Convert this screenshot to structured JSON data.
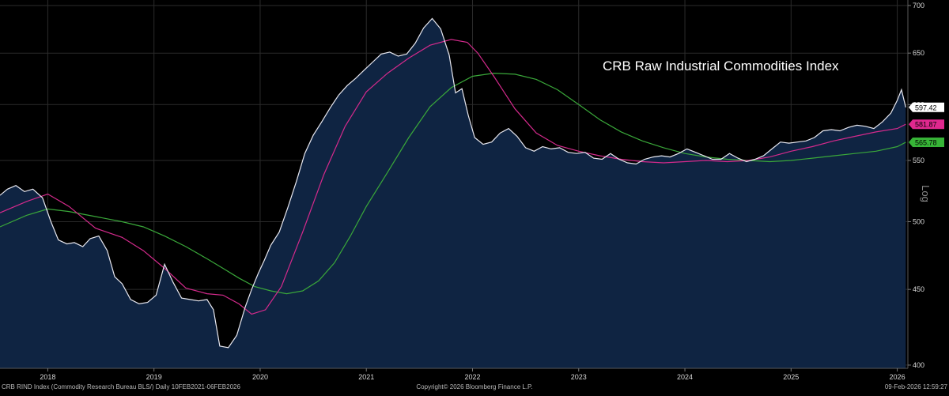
{
  "chart_data": {
    "type": "line",
    "title": "CRB Raw Industrial Commodities Index",
    "axis_label": "Log",
    "log_scale": true,
    "grid": true,
    "xlim": [
      2017.55,
      2026.1
    ],
    "ylim": [
      398,
      706
    ],
    "y_ticks": [
      {
        "value": 400,
        "label": "400"
      },
      {
        "value": 450,
        "label": "450"
      },
      {
        "value": 500,
        "label": "500"
      },
      {
        "value": 550,
        "label": "550"
      },
      {
        "value": 600,
        "label": "600"
      },
      {
        "value": 650,
        "label": "650"
      },
      {
        "value": 700,
        "label": "700"
      }
    ],
    "x_ticks": [
      {
        "value": 2018.0,
        "label": "2018"
      },
      {
        "value": 2019.0,
        "label": "2019"
      },
      {
        "value": 2020.0,
        "label": "2020"
      },
      {
        "value": 2021.0,
        "label": "2021"
      },
      {
        "value": 2022.0,
        "label": "2022"
      },
      {
        "value": 2023.0,
        "label": "2023"
      },
      {
        "value": 2024.0,
        "label": "2024"
      },
      {
        "value": 2025.0,
        "label": "2025"
      },
      {
        "value": 2026.0,
        "label": "2026"
      }
    ],
    "colors": {
      "price": "#e8e8f0",
      "area_fill": "#0f2442",
      "ma_short": "#d42a8c",
      "ma_long": "#3aa83a",
      "grid": "#2b2b2b"
    },
    "series": [
      {
        "key": "price",
        "x": [
          2017.55,
          2017.62,
          2017.7,
          2017.78,
          2017.86,
          2017.95,
          2018.03,
          2018.1,
          2018.18,
          2018.25,
          2018.33,
          2018.4,
          2018.48,
          2018.56,
          2018.63,
          2018.7,
          2018.78,
          2018.86,
          2018.94,
          2019.02,
          2019.1,
          2019.18,
          2019.26,
          2019.34,
          2019.42,
          2019.5,
          2019.56,
          2019.62,
          2019.7,
          2019.78,
          2019.86,
          2019.92,
          2019.98,
          2020.04,
          2020.1,
          2020.18,
          2020.26,
          2020.34,
          2020.42,
          2020.5,
          2020.58,
          2020.66,
          2020.74,
          2020.82,
          2020.9,
          2020.98,
          2021.06,
          2021.14,
          2021.22,
          2021.3,
          2021.38,
          2021.46,
          2021.54,
          2021.62,
          2021.7,
          2021.78,
          2021.84,
          2021.9,
          2021.96,
          2022.02,
          2022.1,
          2022.18,
          2022.26,
          2022.34,
          2022.42,
          2022.5,
          2022.58,
          2022.66,
          2022.74,
          2022.82,
          2022.9,
          2022.98,
          2023.06,
          2023.14,
          2023.22,
          2023.3,
          2023.38,
          2023.46,
          2023.54,
          2023.62,
          2023.7,
          2023.78,
          2023.86,
          2023.94,
          2024.02,
          2024.1,
          2024.18,
          2024.26,
          2024.34,
          2024.42,
          2024.5,
          2024.58,
          2024.66,
          2024.74,
          2024.82,
          2024.9,
          2024.98,
          2025.06,
          2025.14,
          2025.22,
          2025.3,
          2025.38,
          2025.46,
          2025.54,
          2025.62,
          2025.7,
          2025.78,
          2025.86,
          2025.94,
          2026.0,
          2026.04,
          2026.08
        ],
        "values": [
          521,
          526,
          529,
          524,
          526,
          519,
          500,
          486,
          483,
          484,
          481,
          487,
          489,
          478,
          459,
          454,
          443,
          440,
          441,
          446,
          468,
          455,
          444,
          443,
          442,
          443,
          436,
          412,
          411,
          419,
          438,
          450,
          461,
          471,
          482,
          492,
          511,
          532,
          556,
          572,
          584,
          597,
          609,
          618,
          625,
          633,
          641,
          649,
          651,
          647,
          649,
          660,
          676,
          686,
          675,
          648,
          611,
          615,
          590,
          570,
          564,
          566,
          574,
          578,
          571,
          561,
          558,
          562,
          560,
          561,
          557,
          556,
          557,
          552,
          551,
          556,
          551,
          548,
          547,
          551,
          553,
          554,
          553,
          556,
          560,
          557,
          554,
          551,
          551,
          556,
          552,
          549,
          551,
          554,
          560,
          566,
          565,
          566,
          567,
          570,
          576,
          577,
          576,
          579,
          581,
          580,
          578,
          584,
          592,
          604,
          614,
          597.42
        ]
      },
      {
        "key": "ma_short",
        "x": [
          2017.55,
          2017.8,
          2018.0,
          2018.2,
          2018.45,
          2018.7,
          2018.9,
          2019.1,
          2019.3,
          2019.5,
          2019.65,
          2019.8,
          2019.92,
          2020.05,
          2020.2,
          2020.4,
          2020.6,
          2020.8,
          2021.0,
          2021.2,
          2021.4,
          2021.6,
          2021.8,
          2021.95,
          2022.05,
          2022.2,
          2022.4,
          2022.6,
          2022.8,
          2023.0,
          2023.2,
          2023.4,
          2023.6,
          2023.8,
          2024.0,
          2024.2,
          2024.4,
          2024.6,
          2024.8,
          2025.0,
          2025.2,
          2025.4,
          2025.6,
          2025.8,
          2026.0,
          2026.08
        ],
        "values": [
          507,
          516,
          522,
          512,
          495,
          488,
          478,
          465,
          451,
          447,
          446,
          440,
          433,
          436,
          452,
          492,
          538,
          580,
          612,
          630,
          645,
          658,
          664,
          661,
          650,
          627,
          596,
          574,
          563,
          558,
          554,
          551,
          549,
          548,
          549,
          550,
          549,
          550,
          553,
          558,
          562,
          567,
          571,
          575,
          578,
          581.87
        ]
      },
      {
        "key": "ma_long",
        "x": [
          2017.55,
          2017.8,
          2018.0,
          2018.2,
          2018.45,
          2018.7,
          2018.9,
          2019.1,
          2019.3,
          2019.5,
          2019.65,
          2019.8,
          2019.95,
          2020.1,
          2020.25,
          2020.4,
          2020.55,
          2020.7,
          2020.85,
          2021.0,
          2021.2,
          2021.4,
          2021.6,
          2021.8,
          2022.0,
          2022.2,
          2022.4,
          2022.6,
          2022.8,
          2023.0,
          2023.2,
          2023.4,
          2023.6,
          2023.8,
          2024.0,
          2024.2,
          2024.4,
          2024.6,
          2024.8,
          2025.0,
          2025.2,
          2025.4,
          2025.6,
          2025.8,
          2026.0,
          2026.08
        ],
        "values": [
          496,
          505,
          510,
          508,
          504,
          500,
          496,
          489,
          481,
          472,
          465,
          458,
          452,
          449,
          447,
          449,
          456,
          469,
          489,
          512,
          540,
          570,
          598,
          616,
          627,
          630,
          629,
          624,
          614,
          600,
          586,
          575,
          567,
          561,
          556,
          553,
          551,
          550,
          549,
          550,
          552,
          554,
          556,
          558,
          562,
          565.78
        ]
      }
    ],
    "last_values": [
      {
        "key": "price",
        "label": "597.42",
        "value": 597.42,
        "bg": "#ffffff",
        "fg": "#000000"
      },
      {
        "key": "ma_short",
        "label": "581.87",
        "value": 581.87,
        "bg": "#e0288e",
        "fg": "#000000"
      },
      {
        "key": "ma_long",
        "label": "565.78",
        "value": 565.78,
        "bg": "#37b437",
        "fg": "#000000"
      }
    ]
  },
  "footer": {
    "left": "CRB RIND Index (Commodity Research Bureau BLS/) Daily 10FEB2021-06FEB2026",
    "center": "Copyright© 2026 Bloomberg Finance L.P.",
    "right": "09-Feb-2026 12:59:27"
  }
}
